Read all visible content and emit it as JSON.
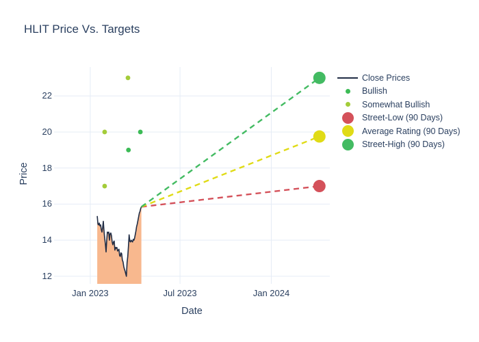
{
  "chart_data": {
    "type": "line",
    "title": "HLIT Price Vs. Targets",
    "xlabel": "Date",
    "ylabel": "Price",
    "grid": true,
    "legend_position": "right",
    "xaxis": {
      "range": [
        "2022-10-20",
        "2024-04-28"
      ],
      "ticks": [
        {
          "label": "Jan 2023",
          "date": "2023-01-01"
        },
        {
          "label": "Jul 2023",
          "date": "2023-07-01"
        },
        {
          "label": "Jan 2024",
          "date": "2024-01-01"
        }
      ]
    },
    "yaxis": {
      "range": [
        11.58,
        23.6
      ],
      "ticks": [
        12,
        14,
        16,
        18,
        20,
        22
      ]
    },
    "close_prices": {
      "name": "Close Prices",
      "color": "#202c44",
      "fill_color": "#f8b88e",
      "start_date": "2023-01-15",
      "end_date": "2023-04-14",
      "values": [
        15.34,
        14.9,
        14.85,
        14.95,
        14.8,
        14.85,
        14.6,
        14.45,
        14.7,
        15.05,
        14.5,
        14.1,
        13.8,
        13.35,
        14.0,
        14.45,
        14.4,
        14.45,
        14.0,
        14.35,
        14.4,
        14.25,
        13.9,
        13.75,
        13.9,
        13.95,
        13.45,
        13.6,
        13.55,
        13.6,
        13.4,
        13.45,
        13.5,
        13.15,
        13.1,
        13.3,
        13.25,
        12.9,
        12.8,
        12.55,
        12.4,
        12.3,
        12.15,
        12.0,
        12.75,
        13.1,
        13.65,
        14.3,
        13.95,
        13.9,
        14.0,
        13.95,
        13.9,
        14.05,
        14.0,
        14.1,
        14.3,
        14.5,
        14.75,
        14.9,
        15.1,
        15.3,
        15.5,
        15.6,
        15.75,
        15.85
      ]
    },
    "ratings": [
      {
        "date": "2023-01-30",
        "value": 20,
        "type": "Somewhat Bullish"
      },
      {
        "date": "2023-01-30",
        "value": 17,
        "type": "Somewhat Bullish"
      },
      {
        "date": "2023-03-18",
        "value": 23,
        "type": "Somewhat Bullish"
      },
      {
        "date": "2023-03-19",
        "value": 19,
        "type": "Bullish"
      },
      {
        "date": "2023-04-12",
        "value": 20,
        "type": "Bullish"
      }
    ],
    "rating_colors": {
      "Bullish": "#3cbb56",
      "Somewhat Bullish": "#a3cc39"
    },
    "targets": {
      "date": "2024-04-07",
      "from": {
        "date": "2023-04-14",
        "value": 15.85
      },
      "series": [
        {
          "name": "Street-Low (90 Days)",
          "value": 17,
          "color": "#d4515a"
        },
        {
          "name": "Average Rating (90 Days)",
          "value": 19.75,
          "color": "#e0db16"
        },
        {
          "name": "Street-High (90 Days)",
          "value": 23,
          "color": "#43bb62"
        }
      ]
    },
    "legend": [
      {
        "label": "Close Prices",
        "swatch": "line",
        "color": "#202c44"
      },
      {
        "label": "Bullish",
        "swatch": "dot-small",
        "color": "#3cbb56"
      },
      {
        "label": "Somewhat Bullish",
        "swatch": "dot-small",
        "color": "#a3cc39"
      },
      {
        "label": "Street-Low (90 Days)",
        "swatch": "dot-large",
        "color": "#d4515a"
      },
      {
        "label": "Average Rating (90 Days)",
        "swatch": "dot-large",
        "color": "#e0db16"
      },
      {
        "label": "Street-High (90 Days)",
        "swatch": "dot-large",
        "color": "#43bb62"
      }
    ],
    "gridline_color": "#e5ecf6"
  }
}
